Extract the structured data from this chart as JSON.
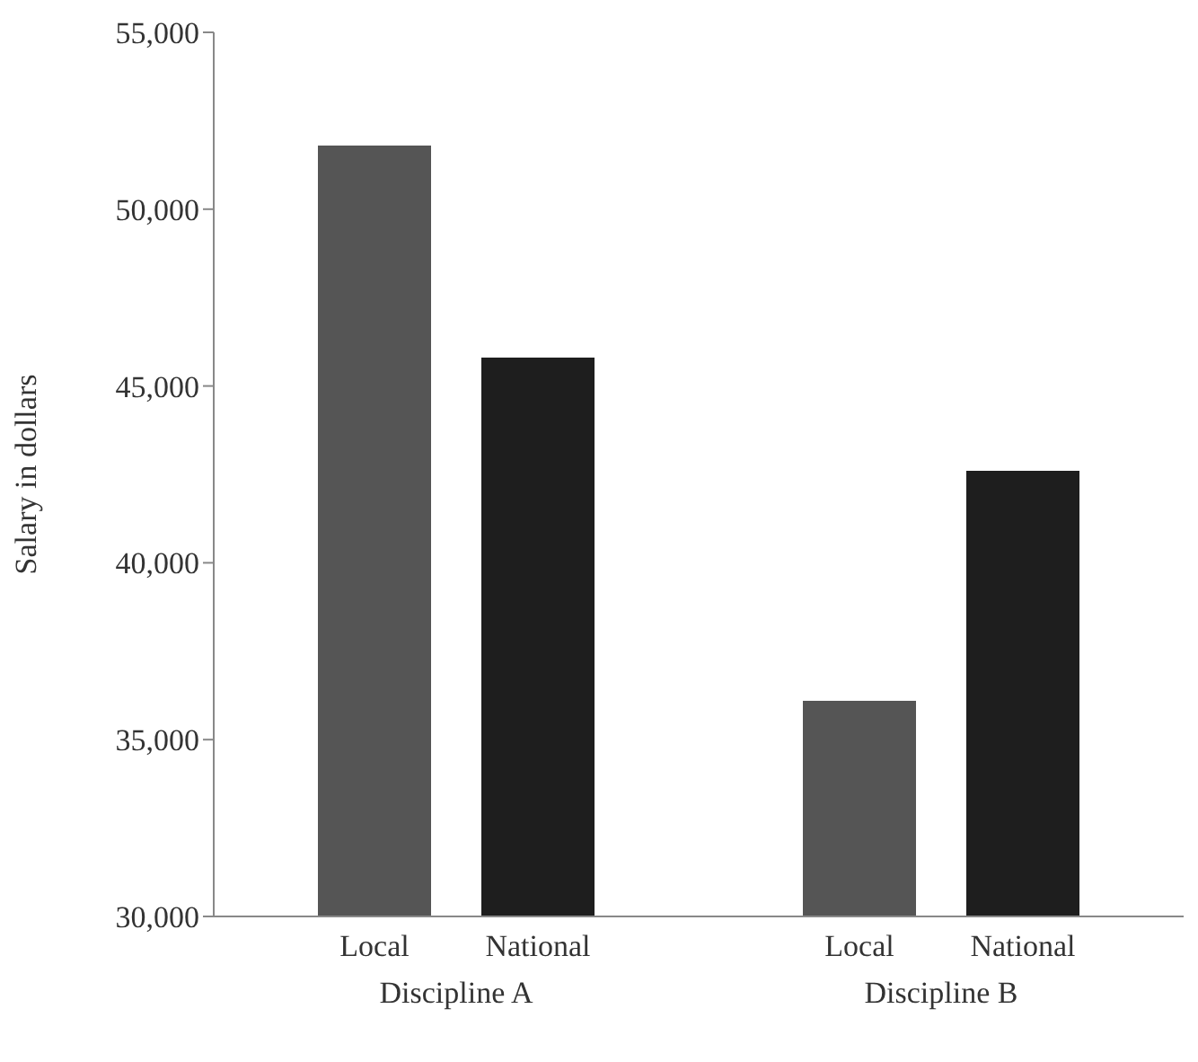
{
  "chart_data": {
    "type": "bar",
    "ylabel": "Salary in dollars",
    "categories": [
      "Discipline A",
      "Discipline B"
    ],
    "series": [
      {
        "name": "Local",
        "color": "#555555",
        "values": [
          51800,
          36100
        ]
      },
      {
        "name": "National",
        "color": "#1e1e1e",
        "values": [
          45800,
          42600
        ]
      }
    ],
    "ylim": [
      30000,
      55000
    ],
    "yticks": [
      {
        "value": 30000,
        "label": "30,000"
      },
      {
        "value": 35000,
        "label": "35,000"
      },
      {
        "value": 40000,
        "label": "40,000"
      },
      {
        "value": 45000,
        "label": "45,000"
      },
      {
        "value": 50000,
        "label": "50,000"
      },
      {
        "value": 55000,
        "label": "55,000"
      }
    ],
    "grid": false,
    "legend": false
  }
}
